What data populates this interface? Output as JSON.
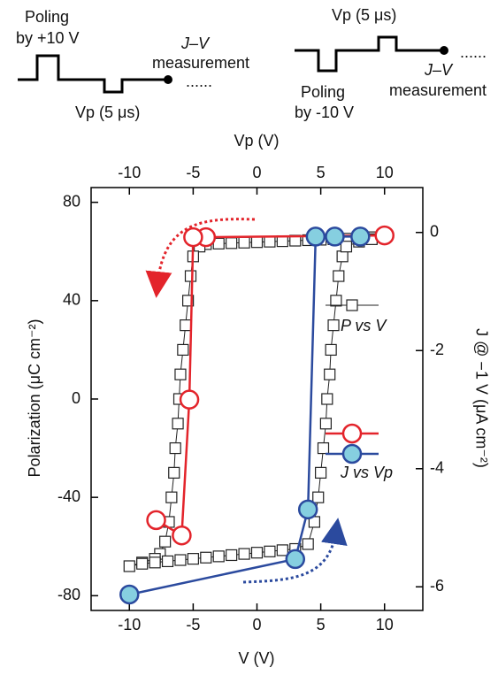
{
  "chart_data": {
    "type": "line",
    "annotations": [
      "Poling",
      "by +10 V",
      "J–V",
      "measurement",
      "Vp (5 μs)",
      "Vp (5 μs)",
      "J–V",
      "measurement",
      "Poling",
      "by -10 V"
    ],
    "xlabel": "V (V)",
    "x2label": "Vp (V)",
    "ylabel": "Polarization (μC cm⁻²)",
    "y2label": "J @ −1 V (μA cm⁻²)",
    "xlim": [
      -13,
      13
    ],
    "xticks": [
      -10,
      -5,
      0,
      5,
      10
    ],
    "x2lim": [
      -13,
      13
    ],
    "x2ticks": [
      -10,
      -5,
      0,
      5,
      10
    ],
    "ylim": [
      -86,
      86
    ],
    "yticks": [
      -80,
      -40,
      0,
      40,
      80
    ],
    "y2lim": [
      -6.4,
      0.76
    ],
    "y2ticks": [
      -6,
      -4,
      -2,
      0
    ],
    "series": [
      {
        "name": "P vs V",
        "axis": "y",
        "marker": "square",
        "color": "#222222",
        "marker_fill": "#ffffff",
        "x": [
          10,
          9,
          8,
          7,
          6,
          5,
          4,
          3,
          2,
          1,
          0,
          -1,
          -2,
          -3,
          -4,
          -4.5,
          -5,
          -5.2,
          -5.4,
          -5.6,
          -5.8,
          -6,
          -6.1,
          -6.2,
          -6.4,
          -6.5,
          -6.7,
          -6.9,
          -7.2,
          -7.6,
          -8,
          -9,
          -10,
          -9,
          -8,
          -7,
          -6,
          -5,
          -4,
          -3,
          -2,
          -1,
          0,
          1,
          2,
          3,
          4,
          4.5,
          4.8,
          5,
          5.2,
          5.4,
          5.5,
          5.7,
          5.8,
          6,
          6.2,
          6.4,
          6.7,
          7,
          8,
          9,
          10
        ],
        "values": [
          66,
          65.8,
          65.5,
          65.2,
          65,
          64.8,
          64.6,
          64.4,
          64.2,
          64,
          63.8,
          63.6,
          63.4,
          63.2,
          63,
          62,
          58,
          50,
          40,
          30,
          20,
          10,
          0,
          -10,
          -20,
          -30,
          -40,
          -50,
          -58,
          -63,
          -65,
          -66.5,
          -68,
          -67,
          -66.5,
          -66,
          -65.5,
          -65,
          -64.5,
          -64,
          -63.5,
          -63,
          -62.5,
          -62,
          -61.5,
          -61,
          -59,
          -50,
          -40,
          -30,
          -20,
          -10,
          0,
          10,
          20,
          30,
          40,
          50,
          58,
          62,
          64,
          65,
          66
        ]
      },
      {
        "axis": "y2",
        "xaxis": "x2",
        "marker": "circle",
        "color": "#e3242b",
        "marker_fill": "#ffffff",
        "x": [
          10,
          -4,
          -5,
          -5.3,
          -5.9,
          -7.9
        ],
        "values": [
          -0.05,
          -0.08,
          -0.08,
          -2.83,
          -5.13,
          -4.87
        ]
      },
      {
        "name": "J vs Vp",
        "axis": "y2",
        "xaxis": "x2",
        "marker": "circle",
        "color": "#2b4a9e",
        "marker_fill": "#86cfe0",
        "x": [
          -10,
          3,
          4,
          4.6,
          6.1,
          8.1
        ],
        "values": [
          -6.13,
          -5.53,
          -4.69,
          -0.07,
          -0.07,
          -0.07
        ]
      }
    ]
  }
}
